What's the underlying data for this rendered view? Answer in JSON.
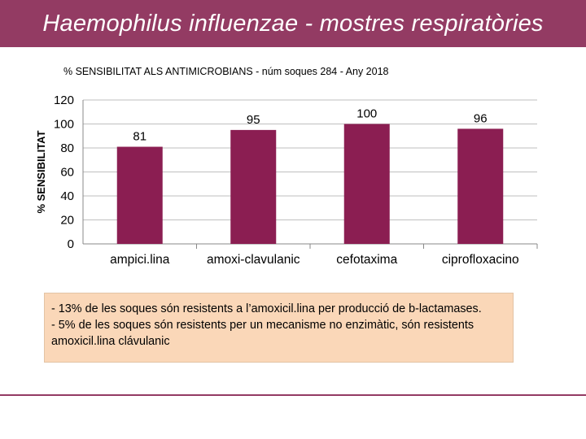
{
  "header": {
    "title": "Haemophilus influenzae - mostres respiratòries"
  },
  "chart_data": {
    "type": "bar",
    "title": "% SENSIBILITAT ALS ANTIMICROBIANS - núm soques 284 - Any 2018",
    "xlabel": "",
    "ylabel": "% SENSIBILITAT",
    "categories": [
      "ampici.lina",
      "amoxi-clavulanic",
      "cefotaxima",
      "ciprofloxacino"
    ],
    "values": [
      81,
      95,
      100,
      96
    ],
    "data_labels": [
      "81",
      "95",
      "100",
      "96"
    ],
    "ylim": [
      0,
      120
    ],
    "yticks": [
      "0",
      "20",
      "40",
      "60",
      "80",
      "100",
      "120"
    ],
    "grid": true,
    "colors": {
      "bar": "#8b1e52",
      "grid": "#bfbfbf",
      "axis": "#888888"
    }
  },
  "note": {
    "line1": "- 13% de les soques són resistents a l’amoxicil.lina per producció de b-lactamases.",
    "line2": " - 5% de les soques són resistents per un mecanisme no enzimàtic, són resistents amoxicil.lina clávulanic"
  },
  "colors": {
    "accent": "#933b63",
    "note_bg": "#fad7b8"
  }
}
